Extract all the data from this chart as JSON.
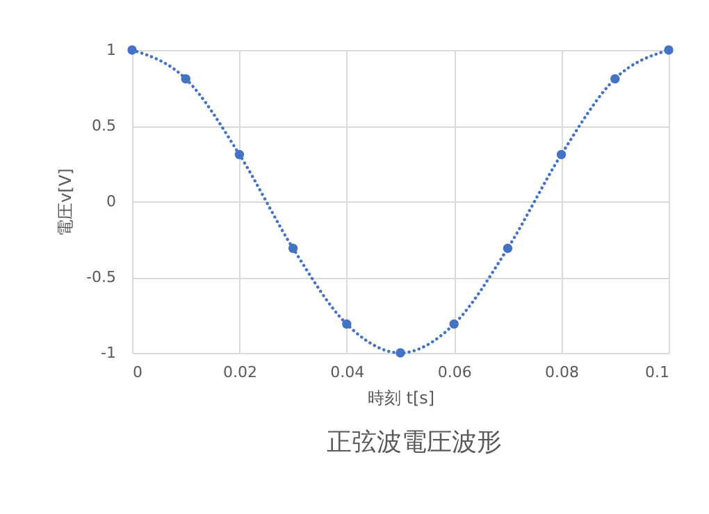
{
  "chart_data": {
    "type": "line",
    "title": "正弦波電圧波形",
    "xlabel": "時刻 t[s]",
    "ylabel": "電圧v[V]",
    "x": [
      0,
      0.01,
      0.02,
      0.03,
      0.04,
      0.05,
      0.06,
      0.07,
      0.08,
      0.09,
      0.1
    ],
    "series": [
      {
        "color": "#4472c4",
        "values": [
          1,
          0.81,
          0.31,
          -0.31,
          -0.81,
          -1,
          -0.81,
          -0.31,
          0.31,
          0.81,
          1
        ]
      }
    ],
    "xlim": [
      0,
      0.1
    ],
    "xticks": [
      0,
      0.02,
      0.04,
      0.06,
      0.08,
      0.1
    ],
    "ylim": [
      -1,
      1
    ],
    "yticks": [
      -1,
      -0.5,
      0,
      0.5,
      1
    ],
    "grid": true,
    "marker": "circle",
    "line_style": "dotted"
  }
}
